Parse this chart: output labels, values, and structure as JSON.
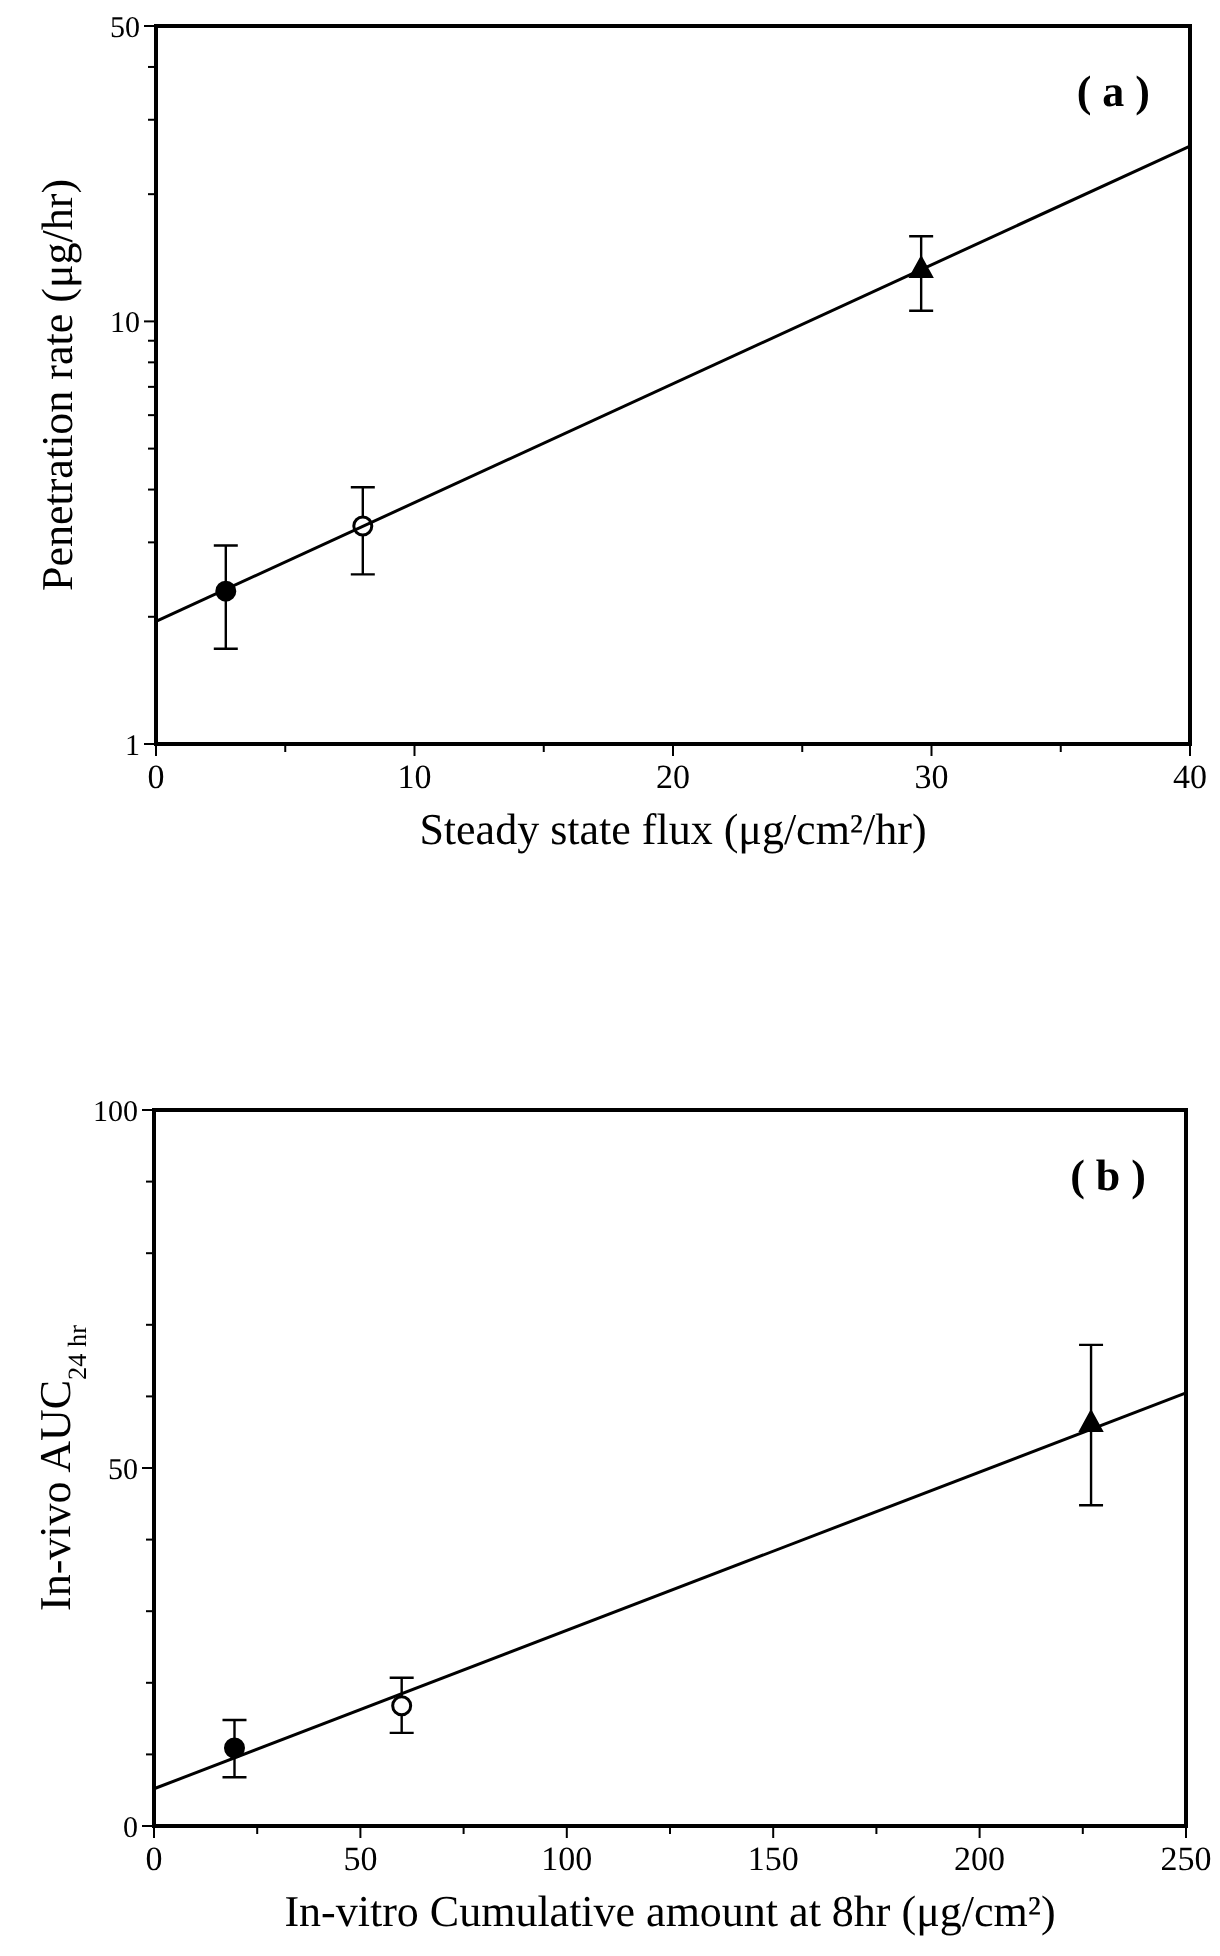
{
  "chart_data": [
    {
      "type": "scatter",
      "xlabel": "Steady state flux (μg/cm²/hr)",
      "ylabel": "Penetration rate (μg/hr)",
      "annotations": [
        "( a )"
      ],
      "log": "y",
      "grid": false,
      "xlim": [
        0,
        40
      ],
      "xticks": [
        0,
        {
          "value": 5,
          "label": null
        },
        10,
        {
          "value": 15,
          "label": null
        },
        20,
        {
          "value": 25,
          "label": null
        },
        30,
        {
          "value": 35,
          "label": null
        },
        40
      ],
      "ylim": [
        1,
        50
      ],
      "yticks": [
        1,
        {
          "value": 2,
          "label": null
        },
        {
          "value": 3,
          "label": null
        },
        {
          "value": 4,
          "label": null
        },
        {
          "value": 5,
          "label": null
        },
        {
          "value": 6,
          "label": null
        },
        {
          "value": 7,
          "label": null
        },
        {
          "value": 8,
          "label": null
        },
        {
          "value": 9,
          "label": null
        },
        10,
        {
          "value": 20,
          "label": null
        },
        {
          "value": 30,
          "label": null
        },
        {
          "value": 40,
          "label": null
        },
        50
      ],
      "series": [
        {
          "marker": "circle",
          "color": "#000000",
          "x": [
            2.7
          ],
          "values": [
            2.3
          ],
          "errors": [
            [
              1.68,
              2.95
            ]
          ]
        },
        {
          "marker": "circle",
          "color": "#ffffff",
          "x": [
            8.0
          ],
          "values": [
            3.28
          ],
          "errors": [
            [
              2.52,
              4.05
            ]
          ]
        },
        {
          "marker": "triangle",
          "color": "#000000",
          "x": [
            29.6
          ],
          "values": [
            13.3
          ],
          "errors": [
            [
              10.6,
              15.9
            ]
          ]
        },
        {
          "type": "line",
          "color": "#000000",
          "x": [
            0,
            40
          ],
          "values": [
            1.95,
            26
          ]
        }
      ]
    },
    {
      "type": "scatter",
      "xlabel": "In-vitro Cumulative amount at 8hr (μg/cm²)",
      "ylabel": "In-vivo AUC$_{24 hr}$",
      "annotations": [
        "( b )"
      ],
      "grid": false,
      "xlim": [
        0,
        250
      ],
      "xticks": [
        0,
        {
          "value": 25,
          "label": null
        },
        50,
        {
          "value": 75,
          "label": null
        },
        100,
        {
          "value": 125,
          "label": null
        },
        150,
        {
          "value": 175,
          "label": null
        },
        200,
        {
          "value": 225,
          "label": null
        },
        250
      ],
      "ylim": [
        0,
        100
      ],
      "yticks": [
        0,
        {
          "value": 10,
          "label": null
        },
        {
          "value": 20,
          "label": null
        },
        {
          "value": 30,
          "label": null
        },
        {
          "value": 40,
          "label": null
        },
        50,
        {
          "value": 60,
          "label": null
        },
        {
          "value": 70,
          "label": null
        },
        {
          "value": 80,
          "label": null
        },
        {
          "value": 90,
          "label": null
        },
        100
      ],
      "series": [
        {
          "marker": "circle",
          "color": "#000000",
          "x": [
            19.5
          ],
          "values": [
            10.9
          ],
          "errors": [
            [
              6.8,
              14.8
            ]
          ]
        },
        {
          "marker": "circle",
          "color": "#ffffff",
          "x": [
            60
          ],
          "values": [
            16.8
          ],
          "errors": [
            [
              13.0,
              20.7
            ]
          ]
        },
        {
          "marker": "triangle",
          "color": "#000000",
          "x": [
            227
          ],
          "values": [
            56.3
          ],
          "errors": [
            [
              44.8,
              67.2
            ]
          ]
        },
        {
          "type": "line",
          "color": "#000000",
          "x": [
            0,
            250
          ],
          "values": [
            5.2,
            60.5
          ]
        }
      ]
    }
  ]
}
